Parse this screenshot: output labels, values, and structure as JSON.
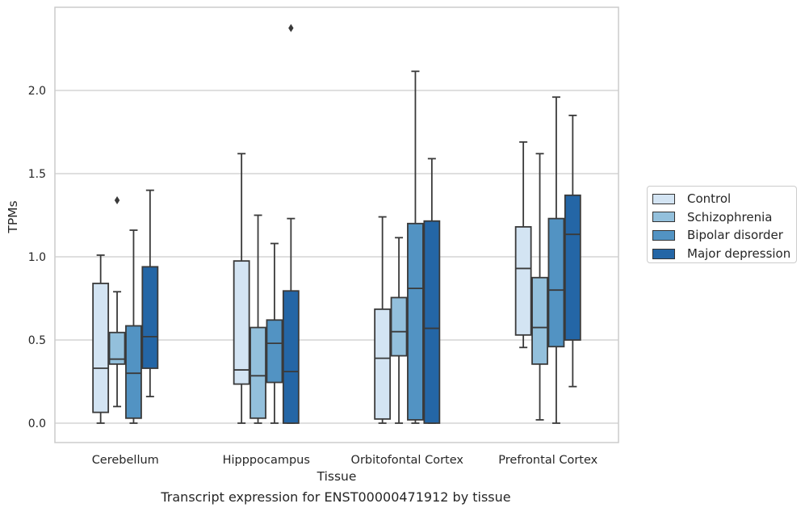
{
  "chart_data": {
    "type": "box",
    "title": "",
    "caption": "Transcript expression for ENST00000471912 by tissue",
    "xlabel": "Tissue",
    "ylabel": "TPMs",
    "ylim": [
      -0.12,
      2.5
    ],
    "yticks": [
      "0.0",
      "0.5",
      "1.0",
      "1.5",
      "2.0"
    ],
    "grid": "horizontal",
    "legend_position": "right",
    "categories": [
      "Cerebellum",
      "Hipppocampus",
      "Orbitofontal Cortex",
      "Prefrontal Cortex"
    ],
    "series": [
      {
        "name": "Control",
        "color": "#d3e4f3",
        "boxes": [
          {
            "whislo": 0.0,
            "q1": 0.065,
            "med": 0.33,
            "q3": 0.84,
            "whishi": 1.01,
            "fliers": []
          },
          {
            "whislo": 0.0,
            "q1": 0.235,
            "med": 0.32,
            "q3": 0.975,
            "whishi": 1.62,
            "fliers": []
          },
          {
            "whislo": 0.0,
            "q1": 0.025,
            "med": 0.39,
            "q3": 0.685,
            "whishi": 1.24,
            "fliers": []
          },
          {
            "whislo": 0.455,
            "q1": 0.53,
            "med": 0.93,
            "q3": 1.18,
            "whishi": 1.69,
            "fliers": []
          }
        ]
      },
      {
        "name": "Schizophrenia",
        "color": "#93c0dc",
        "boxes": [
          {
            "whislo": 0.1,
            "q1": 0.355,
            "med": 0.385,
            "q3": 0.545,
            "whishi": 0.79,
            "fliers": [
              1.34
            ]
          },
          {
            "whislo": 0.0,
            "q1": 0.03,
            "med": 0.285,
            "q3": 0.575,
            "whishi": 1.25,
            "fliers": []
          },
          {
            "whislo": 0.0,
            "q1": 0.405,
            "med": 0.55,
            "q3": 0.755,
            "whishi": 1.115,
            "fliers": []
          },
          {
            "whislo": 0.02,
            "q1": 0.355,
            "med": 0.575,
            "q3": 0.875,
            "whishi": 1.62,
            "fliers": []
          }
        ]
      },
      {
        "name": "Bipolar disorder",
        "color": "#5293c3",
        "boxes": [
          {
            "whislo": 0.0,
            "q1": 0.03,
            "med": 0.3,
            "q3": 0.585,
            "whishi": 1.16,
            "fliers": []
          },
          {
            "whislo": 0.0,
            "q1": 0.245,
            "med": 0.48,
            "q3": 0.62,
            "whishi": 1.08,
            "fliers": []
          },
          {
            "whislo": 0.0,
            "q1": 0.02,
            "med": 0.81,
            "q3": 1.2,
            "whishi": 2.115,
            "fliers": []
          },
          {
            "whislo": 0.0,
            "q1": 0.46,
            "med": 0.8,
            "q3": 1.23,
            "whishi": 1.96,
            "fliers": []
          }
        ]
      },
      {
        "name": "Major depression",
        "color": "#2466a6",
        "boxes": [
          {
            "whislo": 0.16,
            "q1": 0.33,
            "med": 0.52,
            "q3": 0.94,
            "whishi": 1.4,
            "fliers": []
          },
          {
            "whislo": 0.0,
            "q1": 0.0,
            "med": 0.31,
            "q3": 0.795,
            "whishi": 1.23,
            "fliers": [
              2.375
            ]
          },
          {
            "whislo": 0.0,
            "q1": 0.0,
            "med": 0.57,
            "q3": 1.215,
            "whishi": 1.59,
            "fliers": []
          },
          {
            "whislo": 0.22,
            "q1": 0.5,
            "med": 1.135,
            "q3": 1.37,
            "whishi": 1.85,
            "fliers": []
          }
        ]
      }
    ]
  }
}
